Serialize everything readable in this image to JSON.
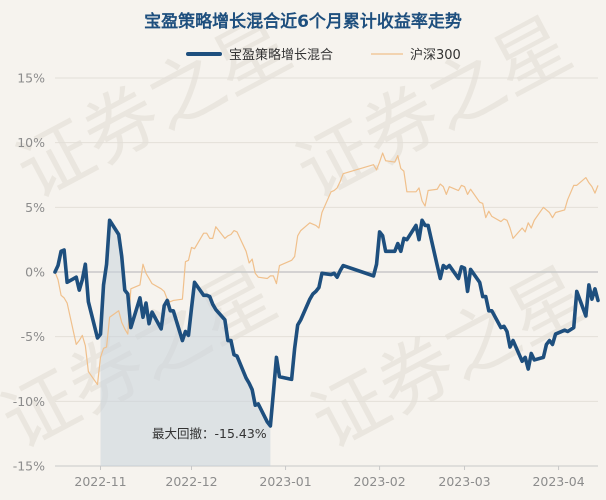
{
  "watermark": "证券之星",
  "colors": {
    "background": "#f6f3ee",
    "fund": "#1e4f7e",
    "index": "#f0c08c",
    "drawdown": "#c9d3dd",
    "zero_line": "#c8c8c8",
    "grid": "#e3dfd8"
  },
  "chart_data": {
    "type": "line",
    "title": "宝盈策略增长混合近6个月累计收益率走势",
    "xlabel": "",
    "ylabel": "",
    "ylim": [
      -15,
      15
    ],
    "yticks": [
      15,
      10,
      5,
      0,
      -5,
      -10,
      -15
    ],
    "ytick_labels": [
      "15%",
      "10%",
      "5%",
      "0%",
      "-5%",
      "-10%",
      "-15%"
    ],
    "xticks": [
      {
        "date": "2022-11-01",
        "label": "2022-11"
      },
      {
        "date": "2022-12-01",
        "label": "2022-12"
      },
      {
        "date": "2023-01-01",
        "label": "2023-01"
      },
      {
        "date": "2023-02-01",
        "label": "2023-02"
      },
      {
        "date": "2023-03-01",
        "label": "2023-03"
      },
      {
        "date": "2023-04-01",
        "label": "2023-04"
      }
    ],
    "x_range": [
      "2022-10-17",
      "2023-04-14"
    ],
    "grid": true,
    "legend_position": "top-center",
    "annotation": {
      "text": "最大回撤：-15.43%",
      "start": "2022-11-01",
      "end": "2022-12-27"
    },
    "series": [
      {
        "name": "宝盈策略增长混合",
        "values": [
          [
            "2022-10-17",
            0.0
          ],
          [
            "2022-10-18",
            0.5
          ],
          [
            "2022-10-19",
            1.6
          ],
          [
            "2022-10-20",
            1.7
          ],
          [
            "2022-10-21",
            -0.8
          ],
          [
            "2022-10-24",
            -0.4
          ],
          [
            "2022-10-25",
            -1.4
          ],
          [
            "2022-10-26",
            -0.6
          ],
          [
            "2022-10-27",
            0.6
          ],
          [
            "2022-10-28",
            -2.3
          ],
          [
            "2022-10-31",
            -5.1
          ],
          [
            "2022-11-01",
            -4.8
          ],
          [
            "2022-11-02",
            -1.0
          ],
          [
            "2022-11-03",
            0.6
          ],
          [
            "2022-11-04",
            4.0
          ],
          [
            "2022-11-07",
            2.9
          ],
          [
            "2022-11-08",
            1.2
          ],
          [
            "2022-11-09",
            -1.4
          ],
          [
            "2022-11-10",
            -1.7
          ],
          [
            "2022-11-11",
            -4.3
          ],
          [
            "2022-11-14",
            -2.0
          ],
          [
            "2022-11-15",
            -3.5
          ],
          [
            "2022-11-16",
            -2.4
          ],
          [
            "2022-11-17",
            -4.0
          ],
          [
            "2022-11-18",
            -3.1
          ],
          [
            "2022-11-21",
            -4.4
          ],
          [
            "2022-11-22",
            -2.6
          ],
          [
            "2022-11-23",
            -2.2
          ],
          [
            "2022-11-24",
            -3.0
          ],
          [
            "2022-11-25",
            -3.0
          ],
          [
            "2022-11-28",
            -5.3
          ],
          [
            "2022-11-29",
            -4.6
          ],
          [
            "2022-11-30",
            -4.9
          ],
          [
            "2022-12-01",
            -2.8
          ],
          [
            "2022-12-02",
            -0.8
          ],
          [
            "2022-12-05",
            -1.8
          ],
          [
            "2022-12-06",
            -1.8
          ],
          [
            "2022-12-07",
            -1.9
          ],
          [
            "2022-12-08",
            -2.5
          ],
          [
            "2022-12-09",
            -2.9
          ],
          [
            "2022-12-12",
            -3.7
          ],
          [
            "2022-12-13",
            -5.3
          ],
          [
            "2022-12-14",
            -5.3
          ],
          [
            "2022-12-15",
            -6.4
          ],
          [
            "2022-12-16",
            -6.5
          ],
          [
            "2022-12-19",
            -8.2
          ],
          [
            "2022-12-20",
            -8.6
          ],
          [
            "2022-12-21",
            -9.1
          ],
          [
            "2022-12-22",
            -10.3
          ],
          [
            "2022-12-23",
            -10.2
          ],
          [
            "2022-12-26",
            -11.6
          ],
          [
            "2022-12-27",
            -11.9
          ],
          [
            "2022-12-28",
            -9.3
          ],
          [
            "2022-12-29",
            -6.6
          ],
          [
            "2022-12-30",
            -8.1
          ],
          [
            "2023-01-03",
            -8.3
          ],
          [
            "2023-01-04",
            -5.9
          ],
          [
            "2023-01-05",
            -4.1
          ],
          [
            "2023-01-06",
            -3.7
          ],
          [
            "2023-01-09",
            -2.1
          ],
          [
            "2023-01-10",
            -1.7
          ],
          [
            "2023-01-11",
            -1.5
          ],
          [
            "2023-01-12",
            -1.2
          ],
          [
            "2023-01-13",
            -0.1
          ],
          [
            "2023-01-16",
            -0.2
          ],
          [
            "2023-01-17",
            -0.1
          ],
          [
            "2023-01-18",
            -0.4
          ],
          [
            "2023-01-19",
            0.1
          ],
          [
            "2023-01-20",
            0.5
          ],
          [
            "2023-01-30",
            -0.3
          ],
          [
            "2023-01-31",
            0.6
          ],
          [
            "2023-02-01",
            3.1
          ],
          [
            "2023-02-02",
            2.8
          ],
          [
            "2023-02-03",
            1.6
          ],
          [
            "2023-02-06",
            1.6
          ],
          [
            "2023-02-07",
            2.2
          ],
          [
            "2023-02-08",
            1.6
          ],
          [
            "2023-02-09",
            2.6
          ],
          [
            "2023-02-10",
            2.5
          ],
          [
            "2023-02-13",
            3.6
          ],
          [
            "2023-02-14",
            2.5
          ],
          [
            "2023-02-15",
            4.0
          ],
          [
            "2023-02-16",
            3.6
          ],
          [
            "2023-02-17",
            3.6
          ],
          [
            "2023-02-20",
            0.5
          ],
          [
            "2023-02-21",
            -0.5
          ],
          [
            "2023-02-22",
            0.5
          ],
          [
            "2023-02-23",
            0.3
          ],
          [
            "2023-02-24",
            0.5
          ],
          [
            "2023-02-27",
            -0.5
          ],
          [
            "2023-02-28",
            0.4
          ],
          [
            "2023-03-01",
            0.3
          ],
          [
            "2023-03-02",
            -1.5
          ],
          [
            "2023-03-03",
            0.2
          ],
          [
            "2023-03-06",
            -0.8
          ],
          [
            "2023-03-07",
            -1.9
          ],
          [
            "2023-03-08",
            -1.9
          ],
          [
            "2023-03-09",
            -3.0
          ],
          [
            "2023-03-10",
            -3.0
          ],
          [
            "2023-03-13",
            -4.3
          ],
          [
            "2023-03-14",
            -4.2
          ],
          [
            "2023-03-15",
            -4.6
          ],
          [
            "2023-03-16",
            -5.8
          ],
          [
            "2023-03-17",
            -5.3
          ],
          [
            "2023-03-20",
            -6.9
          ],
          [
            "2023-03-21",
            -6.6
          ],
          [
            "2023-03-22",
            -7.5
          ],
          [
            "2023-03-23",
            -6.3
          ],
          [
            "2023-03-24",
            -6.8
          ],
          [
            "2023-03-27",
            -6.6
          ],
          [
            "2023-03-28",
            -5.6
          ],
          [
            "2023-03-29",
            -5.3
          ],
          [
            "2023-03-30",
            -5.6
          ],
          [
            "2023-03-31",
            -4.8
          ],
          [
            "2023-04-03",
            -4.5
          ],
          [
            "2023-04-04",
            -4.6
          ],
          [
            "2023-04-06",
            -4.3
          ],
          [
            "2023-04-07",
            -1.5
          ],
          [
            "2023-04-10",
            -3.4
          ],
          [
            "2023-04-11",
            -1.0
          ],
          [
            "2023-04-12",
            -2.1
          ],
          [
            "2023-04-13",
            -1.3
          ],
          [
            "2023-04-14",
            -2.2
          ]
        ]
      },
      {
        "name": "沪深300",
        "values": [
          [
            "2022-10-17",
            0.0
          ],
          [
            "2022-10-18",
            -0.6
          ],
          [
            "2022-10-19",
            -1.8
          ],
          [
            "2022-10-20",
            -2.0
          ],
          [
            "2022-10-21",
            -2.4
          ],
          [
            "2022-10-24",
            -5.6
          ],
          [
            "2022-10-25",
            -5.3
          ],
          [
            "2022-10-26",
            -4.9
          ],
          [
            "2022-10-27",
            -5.7
          ],
          [
            "2022-10-28",
            -7.7
          ],
          [
            "2022-10-31",
            -8.7
          ],
          [
            "2022-11-01",
            -6.6
          ],
          [
            "2022-11-02",
            -5.9
          ],
          [
            "2022-11-03",
            -5.8
          ],
          [
            "2022-11-04",
            -3.5
          ],
          [
            "2022-11-07",
            -3.0
          ],
          [
            "2022-11-08",
            -3.9
          ],
          [
            "2022-11-09",
            -4.4
          ],
          [
            "2022-11-10",
            -4.8
          ],
          [
            "2022-11-11",
            -1.3
          ],
          [
            "2022-11-14",
            -1.0
          ],
          [
            "2022-11-15",
            0.6
          ],
          [
            "2022-11-16",
            -0.1
          ],
          [
            "2022-11-17",
            -0.5
          ],
          [
            "2022-11-18",
            -0.9
          ],
          [
            "2022-11-21",
            -1.3
          ],
          [
            "2022-11-22",
            -1.5
          ],
          [
            "2022-11-23",
            -2.1
          ],
          [
            "2022-11-24",
            -2.3
          ],
          [
            "2022-11-25",
            -2.2
          ],
          [
            "2022-11-28",
            -2.1
          ],
          [
            "2022-11-29",
            0.8
          ],
          [
            "2022-11-30",
            0.9
          ],
          [
            "2022-12-01",
            1.9
          ],
          [
            "2022-12-02",
            1.8
          ],
          [
            "2022-12-05",
            3.0
          ],
          [
            "2022-12-06",
            3.0
          ],
          [
            "2022-12-07",
            2.6
          ],
          [
            "2022-12-08",
            2.6
          ],
          [
            "2022-12-09",
            3.5
          ],
          [
            "2022-12-12",
            2.6
          ],
          [
            "2022-12-13",
            2.8
          ],
          [
            "2022-12-14",
            2.9
          ],
          [
            "2022-12-15",
            3.2
          ],
          [
            "2022-12-16",
            3.1
          ],
          [
            "2022-12-19",
            1.6
          ],
          [
            "2022-12-20",
            0.7
          ],
          [
            "2022-12-21",
            1.0
          ],
          [
            "2022-12-22",
            -0.1
          ],
          [
            "2022-12-23",
            -0.4
          ],
          [
            "2022-12-26",
            -0.5
          ],
          [
            "2022-12-27",
            -0.3
          ],
          [
            "2022-12-28",
            -0.3
          ],
          [
            "2022-12-29",
            -0.9
          ],
          [
            "2022-12-30",
            0.5
          ],
          [
            "2023-01-03",
            0.9
          ],
          [
            "2023-01-04",
            1.2
          ],
          [
            "2023-01-05",
            2.8
          ],
          [
            "2023-01-06",
            3.2
          ],
          [
            "2023-01-09",
            3.8
          ],
          [
            "2023-01-10",
            3.7
          ],
          [
            "2023-01-11",
            3.6
          ],
          [
            "2023-01-12",
            3.4
          ],
          [
            "2023-01-13",
            4.6
          ],
          [
            "2023-01-16",
            6.2
          ],
          [
            "2023-01-17",
            6.3
          ],
          [
            "2023-01-18",
            6.5
          ],
          [
            "2023-01-19",
            7.0
          ],
          [
            "2023-01-20",
            7.6
          ],
          [
            "2023-01-30",
            8.3
          ],
          [
            "2023-01-31",
            7.9
          ],
          [
            "2023-02-01",
            8.5
          ],
          [
            "2023-02-02",
            9.2
          ],
          [
            "2023-02-03",
            8.6
          ],
          [
            "2023-02-06",
            8.5
          ],
          [
            "2023-02-07",
            9.0
          ],
          [
            "2023-02-08",
            8.0
          ],
          [
            "2023-02-09",
            7.8
          ],
          [
            "2023-02-10",
            6.2
          ],
          [
            "2023-02-13",
            6.2
          ],
          [
            "2023-02-14",
            6.5
          ],
          [
            "2023-02-15",
            5.5
          ],
          [
            "2023-02-16",
            5.1
          ],
          [
            "2023-02-17",
            6.3
          ],
          [
            "2023-02-20",
            6.4
          ],
          [
            "2023-02-21",
            6.8
          ],
          [
            "2023-02-22",
            6.6
          ],
          [
            "2023-02-23",
            6.0
          ],
          [
            "2023-02-24",
            6.6
          ],
          [
            "2023-02-27",
            6.3
          ],
          [
            "2023-02-28",
            6.7
          ],
          [
            "2023-03-01",
            6.6
          ],
          [
            "2023-03-02",
            6.0
          ],
          [
            "2023-03-03",
            6.4
          ],
          [
            "2023-03-06",
            5.4
          ],
          [
            "2023-03-07",
            5.3
          ],
          [
            "2023-03-08",
            4.2
          ],
          [
            "2023-03-09",
            4.7
          ],
          [
            "2023-03-10",
            4.3
          ],
          [
            "2023-03-13",
            3.9
          ],
          [
            "2023-03-14",
            4.1
          ],
          [
            "2023-03-15",
            4.0
          ],
          [
            "2023-03-16",
            3.4
          ],
          [
            "2023-03-17",
            2.6
          ],
          [
            "2023-03-20",
            3.4
          ],
          [
            "2023-03-21",
            3.1
          ],
          [
            "2023-03-22",
            3.8
          ],
          [
            "2023-03-23",
            3.4
          ],
          [
            "2023-03-24",
            4.0
          ],
          [
            "2023-03-27",
            5.0
          ],
          [
            "2023-03-28",
            4.8
          ],
          [
            "2023-03-29",
            4.6
          ],
          [
            "2023-03-30",
            4.2
          ],
          [
            "2023-03-31",
            4.6
          ],
          [
            "2023-04-03",
            4.8
          ],
          [
            "2023-04-04",
            5.6
          ],
          [
            "2023-04-06",
            6.7
          ],
          [
            "2023-04-07",
            6.7
          ],
          [
            "2023-04-10",
            7.3
          ],
          [
            "2023-04-11",
            6.9
          ],
          [
            "2023-04-12",
            6.6
          ],
          [
            "2023-04-13",
            6.1
          ],
          [
            "2023-04-14",
            6.7
          ]
        ]
      }
    ]
  }
}
